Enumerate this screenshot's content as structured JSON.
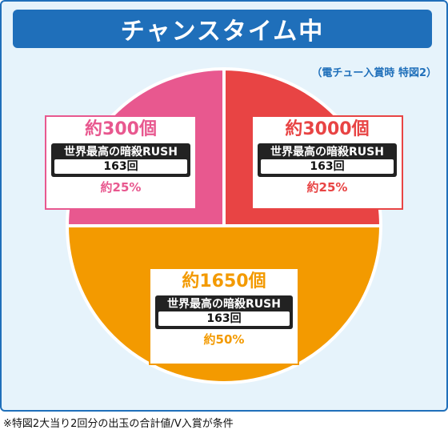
{
  "header": {
    "title": "チャンスタイム中"
  },
  "subtitle": "（電チュー入賞時 特図2）",
  "footnote": "※特図2大当り2回分の出玉の合計値/V入賞が条件",
  "chart_data": {
    "type": "pie",
    "title": "チャンスタイム中",
    "slices": [
      {
        "label": "約3000個",
        "mode": "世界最高の暗殺RUSH",
        "rounds": "163回",
        "percent_label": "約25%",
        "value": 25,
        "color": "#e84444"
      },
      {
        "label": "約1650個",
        "mode": "世界最高の暗殺RUSH",
        "rounds": "163回",
        "percent_label": "約50%",
        "value": 50,
        "color": "#f39a00"
      },
      {
        "label": "約300個",
        "mode": "世界最高の暗殺RUSH",
        "rounds": "163回",
        "percent_label": "約25%",
        "value": 25,
        "color": "#e8588f"
      }
    ]
  }
}
